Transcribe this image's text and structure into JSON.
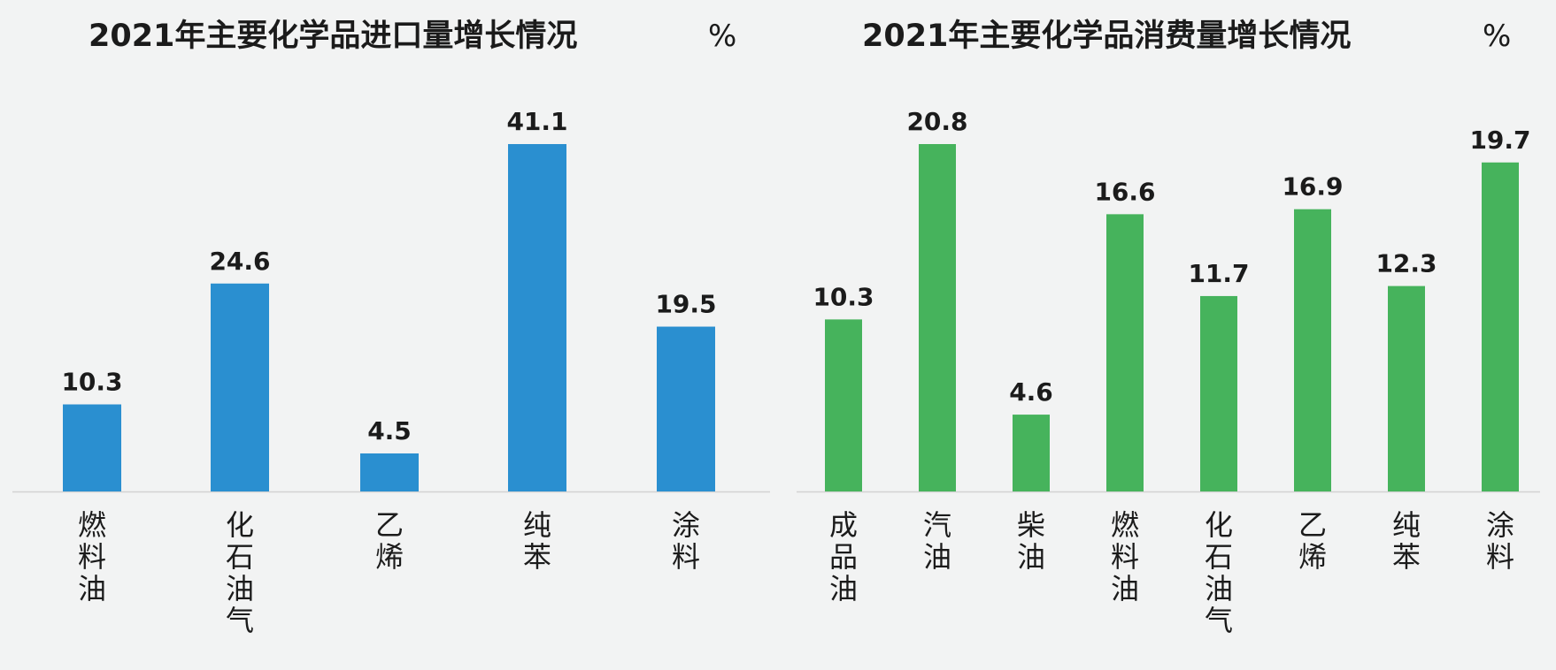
{
  "chart_data": [
    {
      "type": "bar",
      "title": "2021年主要化学品进口量增长情况",
      "unit": "%",
      "categories": [
        "燃料油",
        "化石油气",
        "乙烯",
        "纯苯",
        "涂料"
      ],
      "values": [
        10.3,
        24.6,
        4.5,
        41.1,
        19.5
      ],
      "value_labels": [
        "10.3",
        "24.6",
        "4.5",
        "41.1",
        "19.5"
      ],
      "ylim": [
        0,
        41.1
      ],
      "grid": false,
      "legend": "none",
      "color": "#2a8fd0"
    },
    {
      "type": "bar",
      "title": "2021年主要化学品消费量增长情况",
      "unit": "%",
      "categories": [
        "成品油",
        "汽油",
        "柴油",
        "燃料油",
        "化石油气",
        "乙烯",
        "纯苯",
        "涂料"
      ],
      "values": [
        10.3,
        20.8,
        4.6,
        16.6,
        11.7,
        16.9,
        12.3,
        19.7
      ],
      "value_labels": [
        "10.3",
        "20.8",
        "4.6",
        "16.6",
        "11.7",
        "16.9",
        "12.3",
        "19.7"
      ],
      "ylim": [
        0,
        20.8
      ],
      "grid": false,
      "legend": "none",
      "color": "#46b35c"
    }
  ]
}
